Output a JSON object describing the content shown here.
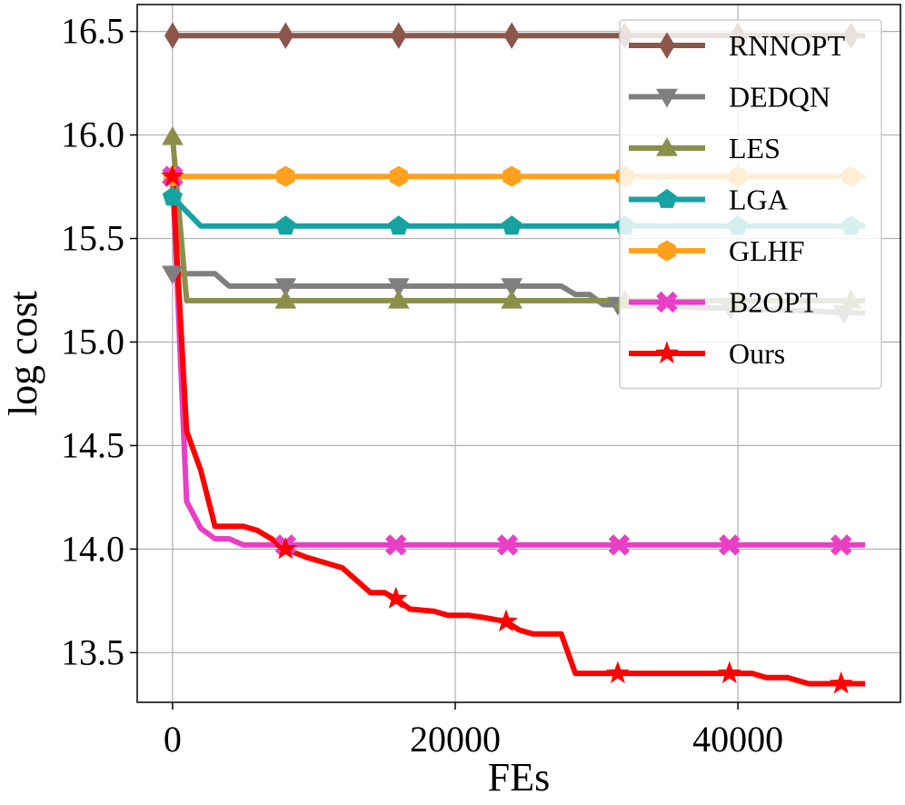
{
  "chart_data": {
    "type": "line",
    "title": "",
    "xlabel": "FEs",
    "ylabel": "log cost",
    "xlim": [
      -2500,
      51500
    ],
    "ylim": [
      13.26,
      16.63
    ],
    "xticks": [
      0,
      20000,
      40000
    ],
    "xtick_labels": [
      "0",
      "20000",
      "40000"
    ],
    "yticks": [
      13.5,
      14.0,
      14.5,
      15.0,
      15.5,
      16.0,
      16.5
    ],
    "ytick_labels": [
      "13.5",
      "14.0",
      "14.5",
      "15.0",
      "15.5",
      "16.0",
      "16.5"
    ],
    "grid": true,
    "legend_position": "upper-right",
    "series": [
      {
        "name": "RNNOPT",
        "color": "#8c564b",
        "marker": "diamond",
        "x": [
          0,
          49000
        ],
        "y": [
          16.48,
          16.48
        ],
        "marker_x": [
          0,
          8000,
          16000,
          24000,
          32000,
          40000,
          48000
        ],
        "marker_y": [
          16.48,
          16.48,
          16.48,
          16.48,
          16.48,
          16.48,
          16.48
        ]
      },
      {
        "name": "DEDQN",
        "color": "#7f7f7f",
        "marker": "triangle-down",
        "x": [
          0,
          1000,
          3000,
          4000,
          8000,
          16000,
          24000,
          27500,
          28500,
          29500,
          30500,
          31500,
          49000
        ],
        "y": [
          15.33,
          15.33,
          15.33,
          15.27,
          15.27,
          15.27,
          15.27,
          15.27,
          15.23,
          15.23,
          15.18,
          15.18,
          15.14
        ],
        "marker_x": [
          0,
          8000,
          16000,
          24000,
          31500,
          39500,
          47500
        ],
        "marker_y": [
          15.33,
          15.27,
          15.27,
          15.27,
          15.18,
          15.16,
          15.14
        ]
      },
      {
        "name": "LES",
        "color": "#8c8f4a",
        "marker": "triangle-up",
        "x": [
          0,
          1000,
          8000,
          16000,
          24000,
          32000,
          49000
        ],
        "y": [
          15.99,
          15.2,
          15.2,
          15.2,
          15.2,
          15.2,
          15.2
        ],
        "marker_x": [
          0,
          8000,
          16000,
          24000,
          32000,
          40000,
          48000
        ],
        "marker_y": [
          15.99,
          15.2,
          15.2,
          15.2,
          15.2,
          15.2,
          15.2
        ]
      },
      {
        "name": "LGA",
        "color": "#17a2a2",
        "marker": "pentagon",
        "x": [
          0,
          2000,
          8000,
          16000,
          24000,
          32000,
          49000
        ],
        "y": [
          15.7,
          15.56,
          15.56,
          15.56,
          15.56,
          15.56,
          15.56
        ],
        "marker_x": [
          0,
          8000,
          16000,
          24000,
          32000,
          40000,
          48000
        ],
        "marker_y": [
          15.7,
          15.56,
          15.56,
          15.56,
          15.56,
          15.56,
          15.56
        ]
      },
      {
        "name": "GLHF",
        "color": "#ffa01e",
        "marker": "hexagon",
        "x": [
          0,
          49000
        ],
        "y": [
          15.8,
          15.8
        ],
        "marker_x": [
          0,
          8000,
          16000,
          24000,
          32000,
          40000,
          48000
        ],
        "marker_y": [
          15.8,
          15.8,
          15.8,
          15.8,
          15.8,
          15.8,
          15.8
        ]
      },
      {
        "name": "B2OPT",
        "color": "#e83fc4",
        "marker": "x-filled",
        "x": [
          0,
          1000,
          2000,
          3000,
          4000,
          5000,
          8000,
          49000
        ],
        "y": [
          15.8,
          14.23,
          14.1,
          14.05,
          14.05,
          14.02,
          14.02,
          14.02
        ],
        "marker_x": [
          0,
          8000,
          15800,
          23700,
          31600,
          39400,
          47300
        ],
        "marker_y": [
          15.8,
          14.02,
          14.02,
          14.02,
          14.02,
          14.02,
          14.02
        ]
      },
      {
        "name": "Ours",
        "color": "#ff0000",
        "marker": "star",
        "x": [
          0,
          1000,
          2000,
          3000,
          5000,
          6000,
          7000,
          8000,
          9500,
          10500,
          12000,
          13000,
          14000,
          15000,
          15800,
          16800,
          18500,
          19500,
          21000,
          22000,
          23600,
          24500,
          25500,
          27500,
          28500,
          31500,
          35000,
          39000,
          41000,
          42000,
          43500,
          45000,
          47500,
          49000
        ],
        "y": [
          15.8,
          14.57,
          14.38,
          14.11,
          14.11,
          14.09,
          14.05,
          14.0,
          13.96,
          13.94,
          13.91,
          13.85,
          13.79,
          13.79,
          13.76,
          13.71,
          13.7,
          13.68,
          13.68,
          13.67,
          13.65,
          13.61,
          13.59,
          13.59,
          13.4,
          13.4,
          13.4,
          13.4,
          13.4,
          13.38,
          13.38,
          13.35,
          13.35,
          13.35
        ],
        "marker_x": [
          0,
          8000,
          15800,
          23600,
          31500,
          39400,
          47300
        ],
        "marker_y": [
          15.8,
          14.0,
          13.76,
          13.65,
          13.4,
          13.4,
          13.35
        ]
      }
    ]
  }
}
